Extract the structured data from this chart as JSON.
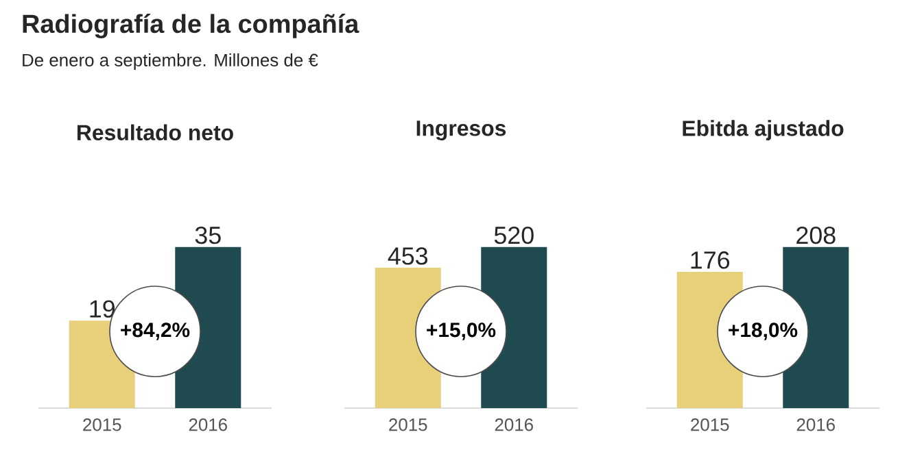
{
  "chart_data": [
    {
      "type": "other",
      "title": "Radiografía de la compañía",
      "subtitle": "De enero a septiembre. Millones de €"
    },
    {
      "type": "bar",
      "title": "Resultado neto",
      "categories": [
        "2015",
        "2016"
      ],
      "values": [
        19,
        35
      ],
      "colors": [
        "#e8cf7a",
        "#1f4a50"
      ],
      "data_labels": true,
      "annotations": [
        "+84,2%"
      ]
    },
    {
      "type": "bar",
      "title": "Ingresos",
      "categories": [
        "2015",
        "2016"
      ],
      "values": [
        453,
        520
      ],
      "colors": [
        "#e8cf7a",
        "#1f4a50"
      ],
      "data_labels": true,
      "annotations": [
        "+15,0%"
      ]
    },
    {
      "type": "bar",
      "title": "Ebitda ajustado",
      "categories": [
        "2015",
        "2016"
      ],
      "values": [
        176,
        208
      ],
      "colors": [
        "#e8cf7a",
        "#1f4a50"
      ],
      "data_labels": true,
      "annotations": [
        "+18,0%"
      ]
    }
  ]
}
